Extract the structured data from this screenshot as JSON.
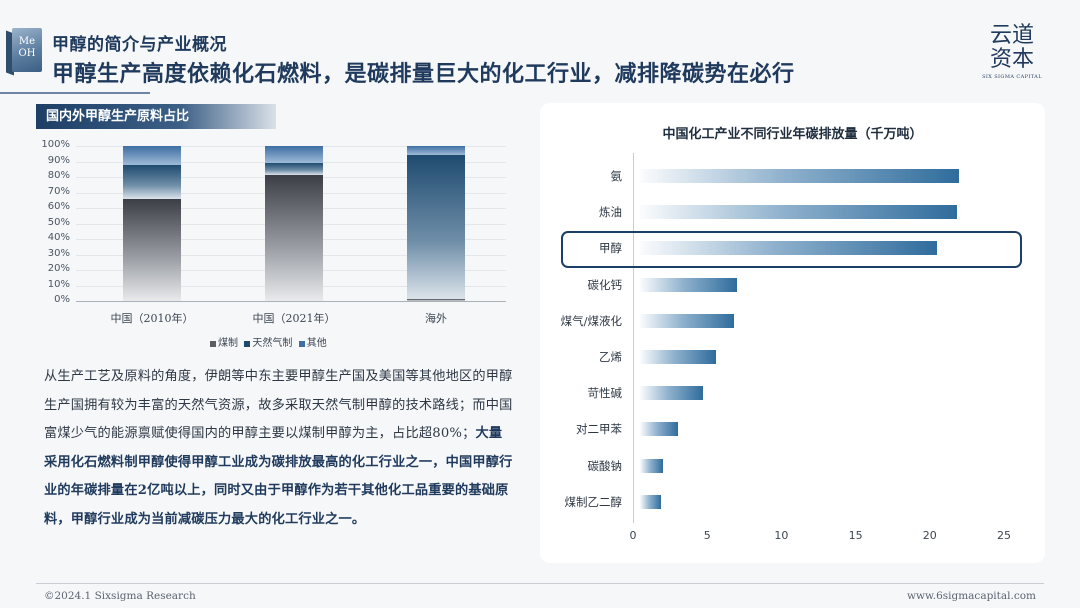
{
  "logo": {
    "cube_text": "Me\nOH"
  },
  "header": {
    "subtitle": "甲醇的简介与产业概况",
    "title": "甲醇生产高度依赖化石燃料，是碳排量巨大的化工行业，减排降碳势在必行"
  },
  "brand": {
    "cn_line1": "云道",
    "cn_line2": "资本",
    "en": "SIX SIGMA CAPITAL"
  },
  "left_section": {
    "tag": "国内外甲醇生产原料占比"
  },
  "paragraph": {
    "normal": "从生产工艺及原料的角度，伊朗等中东主要甲醇生产国及美国等其他地区的甲醇生产国拥有较为丰富的天然气资源，故多采取天然气制甲醇的技术路线；而中国富煤少气的能源禀赋使得国内的甲醇主要以煤制甲醇为主，占比超80%；",
    "bold": "大量采用化石燃料制甲醇使得甲醇工业成为碳排放最高的化工行业之一，中国甲醇行业的年碳排量在2亿吨以上，同时又由于甲醇作为若干其他化工品重要的基础原料，甲醇行业成为当前减碳压力最大的化工行业之一。"
  },
  "footer": {
    "left": "©2024.1 Sixsigma Research",
    "right": "www.6sigmacapital.com"
  },
  "chart_data": [
    {
      "type": "bar",
      "stacked": true,
      "categories": [
        "中国（2010年）",
        "中国（2021年）",
        "海外"
      ],
      "series": [
        {
          "name": "煤制",
          "values": [
            66,
            81,
            1
          ],
          "color": "#5a5e64"
        },
        {
          "name": "天然气制",
          "values": [
            22,
            8,
            93
          ],
          "color": "#1f4b70"
        },
        {
          "name": "其他",
          "values": [
            12,
            11,
            6
          ],
          "color": "#3d6ea3"
        }
      ],
      "y_ticks": [
        "0%",
        "10%",
        "20%",
        "30%",
        "40%",
        "50%",
        "60%",
        "70%",
        "80%",
        "90%",
        "100%"
      ],
      "ylim": [
        0,
        100
      ],
      "legend_position": "bottom",
      "grid": true
    },
    {
      "type": "bar",
      "orientation": "horizontal",
      "title": "中国化工产业不同行业年碳排放量（千万吨）",
      "categories": [
        "氨",
        "炼油",
        "甲醇",
        "碳化钙",
        "煤气/煤液化",
        "乙烯",
        "苛性碱",
        "对二甲苯",
        "碳酸钠",
        "煤制乙二醇"
      ],
      "values": [
        22,
        21.8,
        20.5,
        7,
        6.8,
        5.6,
        4.7,
        3,
        2,
        1.9
      ],
      "xlim": [
        0,
        25
      ],
      "x_ticks": [
        "0",
        "5",
        "10",
        "15",
        "20",
        "25"
      ],
      "highlight": "甲醇",
      "grid": false
    }
  ]
}
